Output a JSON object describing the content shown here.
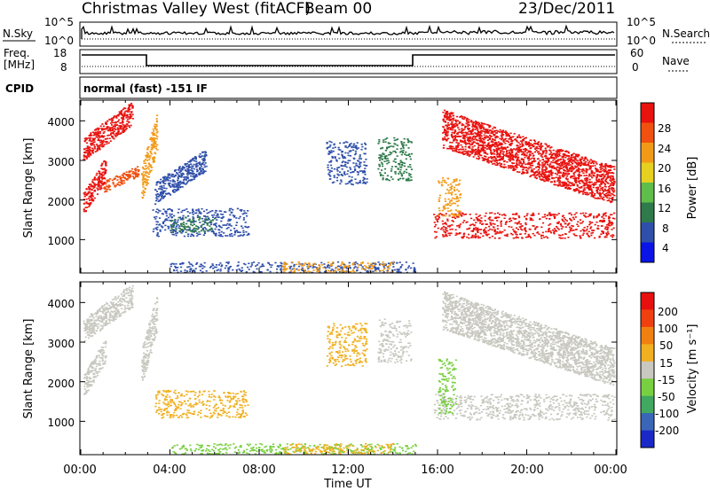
{
  "header": {
    "title": "Christmas Valley West (fitACF)",
    "beam": "Beam 00",
    "date": "23/Dec/2011"
  },
  "nsky_panel": {
    "left_label": "N.Sky",
    "left_ticks": [
      "10^5",
      "10^0"
    ],
    "right_label": "N.Search",
    "right_ticks": [
      "10^5",
      "10^0"
    ]
  },
  "freq_panel": {
    "left_label_1": "Freq.",
    "left_label_2": "[MHz]",
    "left_ticks": [
      "18",
      "8"
    ],
    "right_label": "Nave",
    "right_ticks": [
      "60",
      "0"
    ]
  },
  "cpid_panel": {
    "label": "CPID",
    "text": "normal (fast) -151 IF"
  },
  "chart_data": [
    {
      "type": "heatmap",
      "name": "power-panel",
      "ylabel": "Slant Range [km]",
      "xlim_hours": [
        0,
        24
      ],
      "ylim_km": [
        180,
        4500
      ],
      "y_ticks": [
        "1000",
        "2000",
        "3000",
        "4000"
      ],
      "colorbar_label": "Power [dB]",
      "colorbar_ticks": [
        "4",
        "8",
        "12",
        "16",
        "20",
        "24",
        "28"
      ],
      "colorbar_colors": [
        "#0a14e6",
        "#2f4faa",
        "#2e7a4a",
        "#5fbd4a",
        "#e6d020",
        "#f29a18",
        "#f05010",
        "#e8120e"
      ],
      "clusters": [
        {
          "t0": 0.1,
          "t1": 1.1,
          "r0": 1600,
          "r1": 3100,
          "color": "#e8120e",
          "dir": 1
        },
        {
          "t0": 0.1,
          "t1": 2.3,
          "r0": 3000,
          "r1": 4500,
          "color": "#e8120e",
          "dir": 1
        },
        {
          "t0": 1.0,
          "t1": 2.6,
          "r0": 2200,
          "r1": 2900,
          "color": "#f05010",
          "dir": 1
        },
        {
          "t0": 2.7,
          "t1": 3.4,
          "r0": 1900,
          "r1": 4200,
          "color": "#f29a18",
          "dir": 1
        },
        {
          "t0": 3.3,
          "t1": 5.6,
          "r0": 1900,
          "r1": 3300,
          "color": "#2f4faa",
          "dir": 1
        },
        {
          "t0": 3.2,
          "t1": 7.5,
          "r0": 1100,
          "r1": 1800,
          "color": "#2f4faa",
          "dir": 0
        },
        {
          "t0": 4.0,
          "t1": 6.0,
          "r0": 1200,
          "r1": 1600,
          "color": "#2e7a4a",
          "dir": 0
        },
        {
          "t0": 11.0,
          "t1": 12.8,
          "r0": 2400,
          "r1": 3500,
          "color": "#2f4faa",
          "dir": 0
        },
        {
          "t0": 13.3,
          "t1": 14.8,
          "r0": 2500,
          "r1": 3600,
          "color": "#2e7a4a",
          "dir": 0
        },
        {
          "t0": 15.8,
          "t1": 23.9,
          "r0": 1050,
          "r1": 1700,
          "color": "#e8120e",
          "dir": 0
        },
        {
          "t0": 16.2,
          "t1": 23.9,
          "r0": 1900,
          "r1": 4300,
          "color": "#e8120e",
          "dir": -1
        },
        {
          "t0": 16.0,
          "t1": 17.0,
          "r0": 1600,
          "r1": 2600,
          "color": "#f29a18",
          "dir": 0
        },
        {
          "t0": 4.0,
          "t1": 15.0,
          "r0": 180,
          "r1": 450,
          "color": "#2f4faa",
          "dir": 0
        },
        {
          "t0": 9.0,
          "t1": 14.0,
          "r0": 180,
          "r1": 450,
          "color": "#f29a18",
          "dir": 0
        }
      ]
    },
    {
      "type": "heatmap",
      "name": "velocity-panel",
      "xlabel": "Time UT",
      "ylabel": "Slant Range [km]",
      "xlim_hours": [
        0,
        24
      ],
      "ylim_km": [
        180,
        4500
      ],
      "y_ticks": [
        "1000",
        "2000",
        "3000",
        "4000"
      ],
      "x_ticks": [
        "00:00",
        "04:00",
        "08:00",
        "12:00",
        "16:00",
        "20:00",
        "00:00"
      ],
      "colorbar_label": "Velocity [m s⁻¹]",
      "colorbar_ticks": [
        "200",
        "100",
        "50",
        "15",
        "-15",
        "-50",
        "-100",
        "-200"
      ],
      "colorbar_colors": [
        "#1a28c8",
        "#3a66b8",
        "#40a860",
        "#78d040",
        "#c8c8c0",
        "#f0b020",
        "#f08010",
        "#f04010",
        "#e8100e"
      ],
      "clusters": [
        {
          "t0": 0.1,
          "t1": 1.1,
          "r0": 1600,
          "r1": 3100,
          "color": "#c8c8c0",
          "dir": 1
        },
        {
          "t0": 0.1,
          "t1": 2.3,
          "r0": 3000,
          "r1": 4500,
          "color": "#c8c8c0",
          "dir": 1
        },
        {
          "t0": 2.7,
          "t1": 3.4,
          "r0": 1900,
          "r1": 4200,
          "color": "#c8c8c0",
          "dir": 1
        },
        {
          "t0": 3.3,
          "t1": 7.5,
          "r0": 1100,
          "r1": 1800,
          "color": "#f0b020",
          "dir": 0
        },
        {
          "t0": 11.0,
          "t1": 12.8,
          "r0": 2400,
          "r1": 3500,
          "color": "#f0b020",
          "dir": 0
        },
        {
          "t0": 13.3,
          "t1": 14.8,
          "r0": 2500,
          "r1": 3600,
          "color": "#c8c8c0",
          "dir": 0
        },
        {
          "t0": 15.8,
          "t1": 23.9,
          "r0": 1050,
          "r1": 1700,
          "color": "#c8c8c0",
          "dir": 0
        },
        {
          "t0": 16.2,
          "t1": 23.9,
          "r0": 1900,
          "r1": 4300,
          "color": "#c8c8c0",
          "dir": -1
        },
        {
          "t0": 16.0,
          "t1": 16.8,
          "r0": 1200,
          "r1": 2600,
          "color": "#78d040",
          "dir": 0
        },
        {
          "t0": 4.0,
          "t1": 15.0,
          "r0": 180,
          "r1": 450,
          "color": "#78d040",
          "dir": 0
        },
        {
          "t0": 9.0,
          "t1": 14.0,
          "r0": 180,
          "r1": 450,
          "color": "#f0b020",
          "dir": 0
        }
      ]
    }
  ]
}
